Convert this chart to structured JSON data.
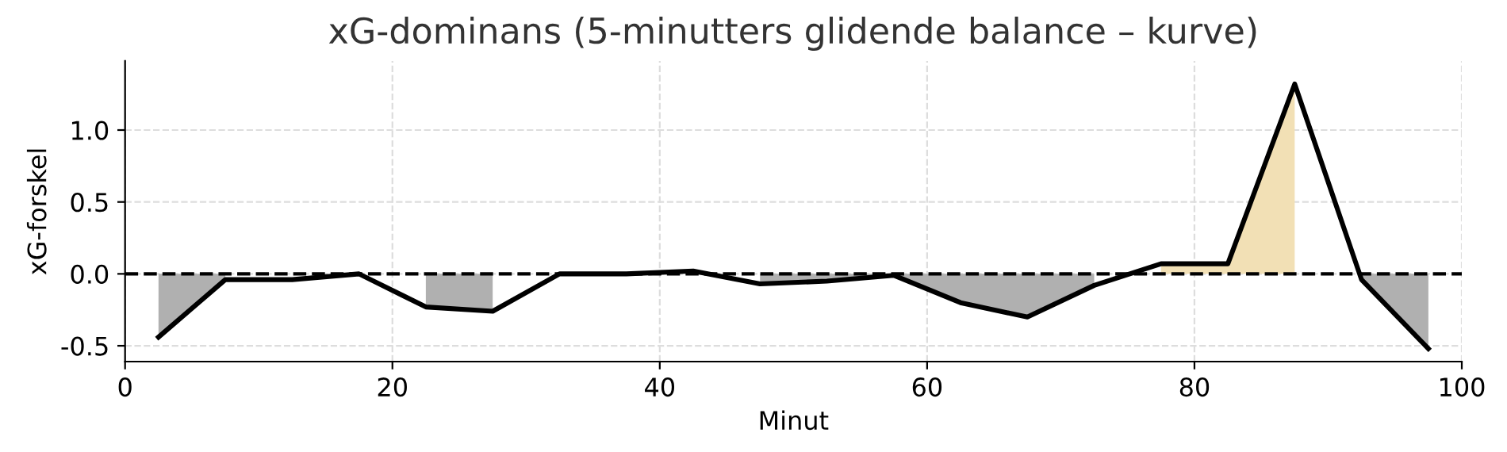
{
  "chart_data": {
    "type": "line",
    "title": "xG-dominans (5-minutters glidende balance – kurve)",
    "xlabel": "Minut",
    "ylabel": "xG-forskel",
    "x": [
      2.5,
      7.5,
      12.5,
      17.5,
      22.5,
      27.5,
      32.5,
      37.5,
      42.5,
      47.5,
      52.5,
      57.5,
      62.5,
      67.5,
      72.5,
      77.5,
      82.5,
      87.5,
      92.5,
      97.5
    ],
    "series": [
      {
        "type": "area",
        "color": "#b0b0b0",
        "values": [
          -0.44,
          -0.04,
          null,
          null,
          -0.23,
          -0.26,
          null,
          null,
          null,
          -0.07,
          -0.05,
          -0.01,
          -0.2,
          -0.3,
          -0.08,
          null,
          null,
          null,
          -0.04,
          -0.52
        ]
      },
      {
        "type": "area",
        "color": "#f2e0b5",
        "values": [
          null,
          null,
          null,
          null,
          null,
          null,
          null,
          null,
          null,
          null,
          null,
          null,
          null,
          null,
          null,
          0.07,
          0.07,
          1.32,
          null,
          null
        ]
      },
      {
        "color": "#000000",
        "values": [
          -0.44,
          -0.04,
          -0.04,
          0.0,
          -0.23,
          -0.26,
          0.0,
          0.0,
          0.02,
          -0.07,
          -0.05,
          -0.01,
          -0.2,
          -0.3,
          -0.08,
          0.07,
          0.07,
          1.32,
          -0.04,
          -0.52
        ]
      }
    ],
    "ref_lines": [
      {
        "axis": "y",
        "value": 0,
        "color": "#000000",
        "line_style": "dashed"
      }
    ],
    "xlim": [
      0,
      100
    ],
    "xticks": [
      0,
      20,
      40,
      60,
      80,
      100
    ],
    "ylim": [
      -0.61,
      1.48
    ],
    "yticks": [
      -0.5,
      {
        "value": 0,
        "label": "0.0"
      },
      0.5,
      {
        "value": 1,
        "label": "1.0"
      }
    ],
    "grid": true,
    "line_style": "solid",
    "marker": "none"
  }
}
